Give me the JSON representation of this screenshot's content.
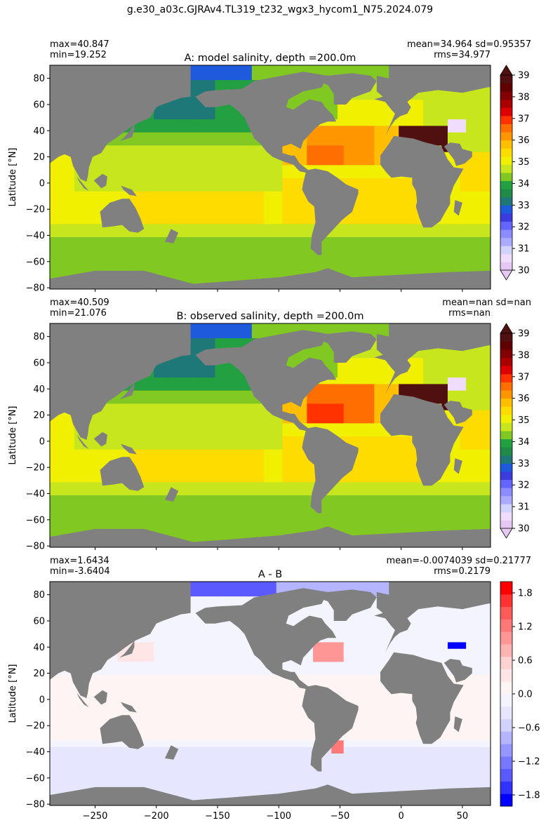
{
  "suptitle": "g.e30_a03c.GJRAv4.TL319_t232_wgx3_hycom1_N75.2024.079",
  "colors": {
    "land": "#808080",
    "salinity_colormap": [
      "#e6c8f5",
      "#f0dcff",
      "#d2d2ff",
      "#aaaaff",
      "#8c8cff",
      "#6464ff",
      "#3c3cdc",
      "#1e5adc",
      "#1e7878",
      "#1e8c46",
      "#23a041",
      "#82c822",
      "#c8e61e",
      "#f0f000",
      "#ffdc00",
      "#ffbe00",
      "#ff9600",
      "#ff6e00",
      "#ff3200",
      "#dc0000",
      "#aa0000",
      "#820000",
      "#600000",
      "#501010"
    ],
    "diff_colormap": [
      "#0000ff",
      "#3232ff",
      "#5a5aff",
      "#7878ff",
      "#9696ff",
      "#b4b4ff",
      "#d2d2ff",
      "#e6e6ff",
      "#f4f4ff",
      "#fff4f4",
      "#ffe6e6",
      "#ffd2d2",
      "#ffb4b4",
      "#ff9696",
      "#ff7878",
      "#ff5a5a",
      "#ff3232",
      "#ff0000"
    ]
  },
  "chart_data": [
    {
      "type": "heatmap",
      "title": "A: model salinity, depth =200.0m",
      "stats_left": [
        "max=40.847",
        "min=19.252"
      ],
      "stats_right": [
        "mean=34.964 sd=0.95357",
        "rms=34.977"
      ],
      "ylabel": "Latitude [°N]",
      "xlabel": "",
      "xlim": [
        -287,
        73
      ],
      "ylim": [
        -81,
        90
      ],
      "yticks": [
        -80,
        -60,
        -40,
        -20,
        0,
        20,
        40,
        60,
        80
      ],
      "xticks": [
        -250,
        -200,
        -150,
        -100,
        -50,
        0,
        50
      ],
      "show_xtick_labels": false,
      "colorbar": {
        "min": 30,
        "max": 39,
        "ticks": [
          30,
          31,
          32,
          33,
          34,
          35,
          36,
          37,
          38,
          39
        ],
        "extend": "both"
      }
    },
    {
      "type": "heatmap",
      "title": "B: observed salinity, depth =200.0m",
      "stats_left": [
        "max=40.509",
        "min=21.076"
      ],
      "stats_right": [
        "mean=nan sd=nan",
        "rms=nan"
      ],
      "ylabel": "Latitude [°N]",
      "xlabel": "",
      "xlim": [
        -287,
        73
      ],
      "ylim": [
        -81,
        90
      ],
      "yticks": [
        -80,
        -60,
        -40,
        -20,
        0,
        20,
        40,
        60,
        80
      ],
      "xticks": [
        -250,
        -200,
        -150,
        -100,
        -50,
        0,
        50
      ],
      "show_xtick_labels": false,
      "colorbar": {
        "min": 30,
        "max": 39,
        "ticks": [
          30,
          31,
          32,
          33,
          34,
          35,
          36,
          37,
          38,
          39
        ],
        "extend": "both"
      }
    },
    {
      "type": "heatmap",
      "title": "A - B",
      "stats_left": [
        "max=1.6434",
        "min=-3.6404"
      ],
      "stats_right": [
        "mean=-0.0074039 sd=0.21777",
        "rms=0.2179"
      ],
      "ylabel": "Latitude [°N]",
      "xlabel": "",
      "xlim": [
        -287,
        73
      ],
      "ylim": [
        -81,
        90
      ],
      "yticks": [
        -80,
        -60,
        -40,
        -20,
        0,
        20,
        40,
        60,
        80
      ],
      "xticks": [
        -250,
        -200,
        -150,
        -100,
        -50,
        0,
        50
      ],
      "show_xtick_labels": true,
      "colorbar": {
        "min": -2,
        "max": 2,
        "ticks": [
          -1.8,
          -1.2,
          -0.6,
          0.0,
          0.6,
          1.2,
          1.8
        ],
        "tick_labels": [
          "−1.8",
          "−1.2",
          "−0.6",
          "0.0",
          "0.6",
          "1.2",
          "1.8"
        ],
        "extend": "neither"
      }
    }
  ]
}
